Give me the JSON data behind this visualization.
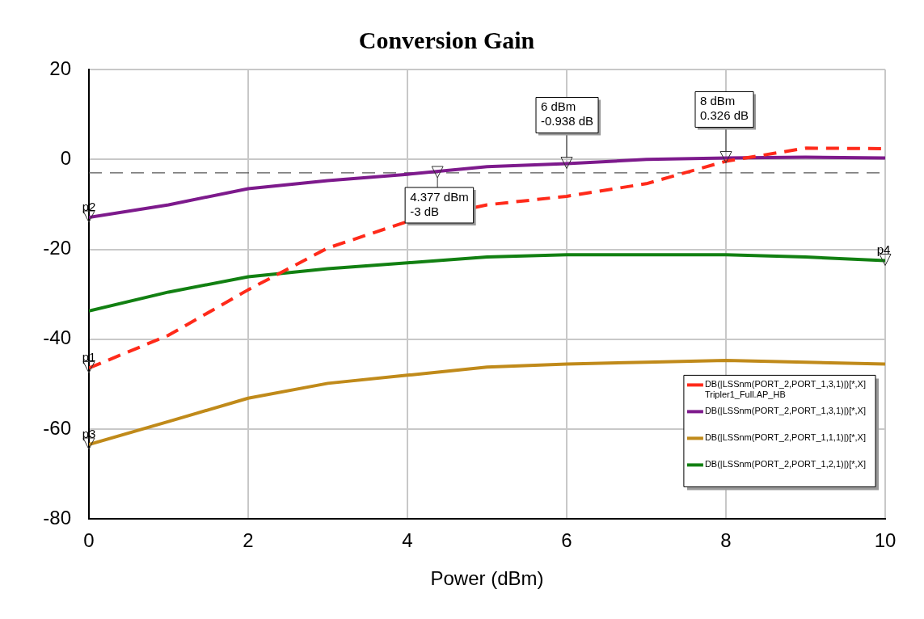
{
  "chart_data": {
    "type": "line",
    "title": "Conversion Gain",
    "xlabel": "Power (dBm)",
    "x": [
      0,
      1,
      2,
      3,
      4,
      5,
      6,
      7,
      8,
      9,
      10
    ],
    "xlim": [
      0,
      10
    ],
    "xticks": [
      0,
      2,
      4,
      6,
      8,
      10
    ],
    "ylim": [
      -80,
      20
    ],
    "yticks": [
      -80,
      -60,
      -40,
      -20,
      0,
      20
    ],
    "grid": true,
    "legend": "bottom right",
    "marker": "none",
    "series": [
      {
        "name": "DB(|LSSnm(PORT_2,PORT_1,3,1)|)[*,X]\nTripler1_Full.AP_HB",
        "color": "#ff2a1a",
        "line_style": "dashed",
        "values": [
          -46.4,
          -39.1,
          -29,
          -19.7,
          -13.8,
          -10.1,
          -8.2,
          -5.4,
          -0.4,
          2.5,
          2.4
        ]
      },
      {
        "name": "DB(|LSSnm(PORT_2,PORT_1,3,1)|)[*,X]",
        "color": "#7d1a8c",
        "line_style": "solid",
        "values": [
          -12.9,
          -10.1,
          -6.5,
          -4.7,
          -3.3,
          -1.6,
          -0.938,
          0,
          0.326,
          0.5,
          0.3
        ]
      },
      {
        "name": "DB(|LSSnm(PORT_2,PORT_1,1,1)|)[*,X]",
        "color": "#c08a1a",
        "line_style": "solid",
        "values": [
          -63.4,
          -58.3,
          -53.1,
          -49.8,
          -48,
          -46.2,
          -45.5,
          -45.1,
          -44.7,
          -45.1,
          -45.5
        ]
      },
      {
        "name": "DB(|LSSnm(PORT_2,PORT_1,2,1)|)[*,X]",
        "color": "#128012",
        "line_style": "solid",
        "values": [
          -33.7,
          -29.5,
          -26.1,
          -24.3,
          -23,
          -21.7,
          -21.2,
          -21.2,
          -21.2,
          -21.7,
          -22.5
        ]
      }
    ],
    "ref_lines": [
      {
        "axis": "y",
        "value": -3,
        "color": "#555555",
        "line_style": "dashed"
      }
    ],
    "annotations": [
      {
        "text": "p1",
        "x": 0,
        "y": -46.4
      },
      {
        "text": "p2",
        "x": 0,
        "y": -12.9
      },
      {
        "text": "p3",
        "x": 0,
        "y": -63.4
      },
      {
        "text": "p4",
        "x": 10,
        "y": -22.5
      },
      {
        "text": "4.377 dBm\n-3 dB",
        "x": 4.377,
        "y": -3
      },
      {
        "text": "6 dBm\n-0.938 dB",
        "x": 6,
        "y": -0.938
      },
      {
        "text": "8 dBm\n0.326 dB",
        "x": 8,
        "y": 0.326
      }
    ]
  }
}
